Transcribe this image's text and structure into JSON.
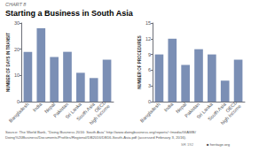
{
  "title": "Starting a Business in South Asia",
  "annotations": [
    "CHART 8",
    "Source: The World Bank, \"Doing Business 2016: South Asia\" http://www.doingbusiness.org/reports/~/media/GIAWB/\nDoing%20Business/Documents/Profiles/Regional/DB2016/DB16-South-Asia.pdf (accessed February 3, 2016).",
    "SR 192",
    "■ heritage.org"
  ],
  "chart_data": [
    {
      "type": "bar",
      "ylabel": "NUMBER OF DAYS IN TRANSIT",
      "categories": [
        "Bangladesh",
        "India",
        "Nepal",
        "Pakistan",
        "Sri Lanka",
        "South Asia",
        "OECD\nhigh income"
      ],
      "values": [
        19,
        28,
        17,
        19,
        11,
        9,
        16
      ],
      "color": "#7b8fb5",
      "ylim": [
        0,
        30
      ],
      "yticks": [
        0,
        10,
        20,
        30
      ],
      "grid": false
    },
    {
      "type": "bar",
      "ylabel": "NUMBER OF PROCEDURES",
      "categories": [
        "Bangladesh",
        "India",
        "Nepal",
        "Pakistan",
        "Sri Lanka",
        "South Asia",
        "OECD\nhigh income"
      ],
      "values": [
        9,
        12,
        7,
        10,
        9,
        4,
        8
      ],
      "color": "#7b8fb5",
      "ylim": [
        0,
        15
      ],
      "yticks": [
        0,
        3,
        6,
        9,
        12,
        15
      ],
      "grid": false
    }
  ]
}
